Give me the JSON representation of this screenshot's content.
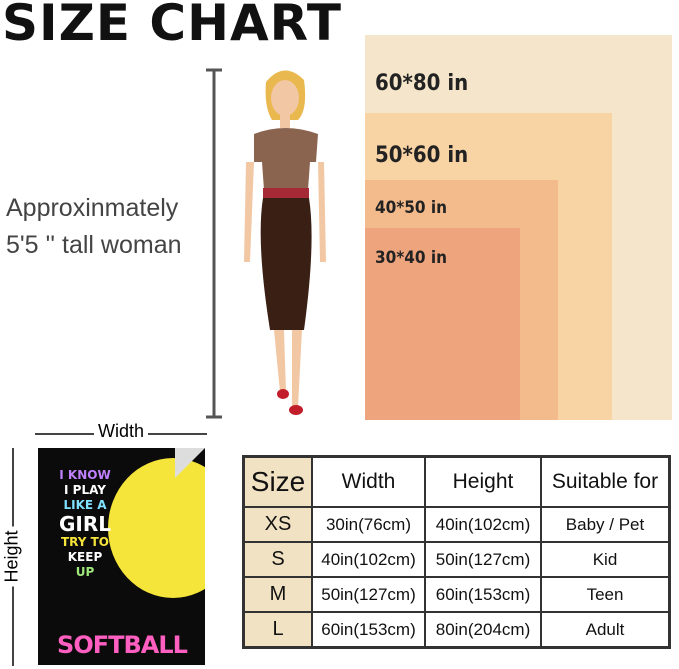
{
  "title": "SIZE CHART",
  "description": [
    "Approxinmately",
    "5'5 '' tall woman"
  ],
  "blankets": [
    {
      "label": "60*80 in",
      "color": "#f5e6cb"
    },
    {
      "label": "50*60 in",
      "color": "#f8d3a4"
    },
    {
      "label": "40*50 in",
      "color": "#f3ba8b"
    },
    {
      "label": "30*40 in",
      "color": "#eea47c"
    }
  ],
  "dimension_labels": {
    "width": "Width",
    "height": "Height"
  },
  "product_art": {
    "lines": [
      "I KNOW",
      "I PLAY",
      "LIKE A",
      "GIRL",
      "TRY TO",
      "KEEP",
      "UP"
    ],
    "bottom": "SOFTBALL"
  },
  "table": {
    "headers": [
      "Size",
      "Width",
      "Height",
      "Suitable for"
    ],
    "rows": [
      [
        "XS",
        "30in(76cm)",
        "40in(102cm)",
        "Baby / Pet"
      ],
      [
        "S",
        "40in(102cm)",
        "50in(127cm)",
        "Kid"
      ],
      [
        "M",
        "50in(127cm)",
        "60in(153cm)",
        "Teen"
      ],
      [
        "L",
        "60in(153cm)",
        "80in(204cm)",
        "Adult"
      ]
    ]
  }
}
